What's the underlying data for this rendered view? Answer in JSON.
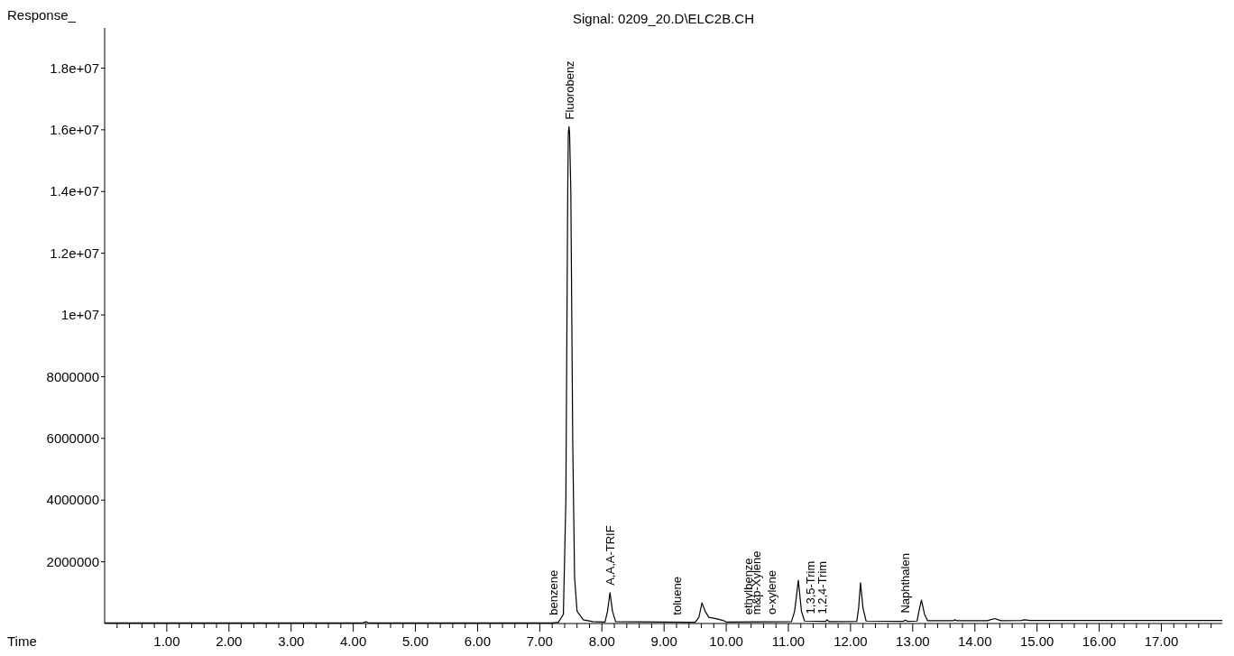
{
  "chart_data": {
    "type": "line",
    "title": "Signal: 0209_20.D\\ELC2B.CH",
    "xlabel": "Time",
    "ylabel": "Response_",
    "grid": false,
    "xlim": [
      0,
      17.98
    ],
    "ylim": [
      0,
      19300000
    ],
    "xticks": [
      {
        "value": 0.2,
        "label": null
      },
      {
        "value": 0.4,
        "label": null
      },
      {
        "value": 0.6,
        "label": null
      },
      {
        "value": 0.8,
        "label": null
      },
      {
        "value": 1,
        "label": "1.00"
      },
      {
        "value": 1.2,
        "label": null
      },
      {
        "value": 1.4,
        "label": null
      },
      {
        "value": 1.6,
        "label": null
      },
      {
        "value": 1.8,
        "label": null
      },
      {
        "value": 2,
        "label": "2.00"
      },
      {
        "value": 2.2,
        "label": null
      },
      {
        "value": 2.4,
        "label": null
      },
      {
        "value": 2.6,
        "label": null
      },
      {
        "value": 2.8,
        "label": null
      },
      {
        "value": 3,
        "label": "3.00"
      },
      {
        "value": 3.2,
        "label": null
      },
      {
        "value": 3.4,
        "label": null
      },
      {
        "value": 3.6,
        "label": null
      },
      {
        "value": 3.8,
        "label": null
      },
      {
        "value": 4,
        "label": "4.00"
      },
      {
        "value": 4.2,
        "label": null
      },
      {
        "value": 4.4,
        "label": null
      },
      {
        "value": 4.6,
        "label": null
      },
      {
        "value": 4.8,
        "label": null
      },
      {
        "value": 5,
        "label": "5.00"
      },
      {
        "value": 5.2,
        "label": null
      },
      {
        "value": 5.4,
        "label": null
      },
      {
        "value": 5.6,
        "label": null
      },
      {
        "value": 5.8,
        "label": null
      },
      {
        "value": 6,
        "label": "6.00"
      },
      {
        "value": 6.2,
        "label": null
      },
      {
        "value": 6.4,
        "label": null
      },
      {
        "value": 6.6,
        "label": null
      },
      {
        "value": 6.8,
        "label": null
      },
      {
        "value": 7,
        "label": "7.00"
      },
      {
        "value": 7.2,
        "label": null
      },
      {
        "value": 7.4,
        "label": null
      },
      {
        "value": 7.6,
        "label": null
      },
      {
        "value": 7.8,
        "label": null
      },
      {
        "value": 8,
        "label": "8.00"
      },
      {
        "value": 8.2,
        "label": null
      },
      {
        "value": 8.4,
        "label": null
      },
      {
        "value": 8.6,
        "label": null
      },
      {
        "value": 8.8,
        "label": null
      },
      {
        "value": 9,
        "label": "9.00"
      },
      {
        "value": 9.2,
        "label": null
      },
      {
        "value": 9.4,
        "label": null
      },
      {
        "value": 9.6,
        "label": null
      },
      {
        "value": 9.8,
        "label": null
      },
      {
        "value": 10,
        "label": "10.00"
      },
      {
        "value": 10.2,
        "label": null
      },
      {
        "value": 10.4,
        "label": null
      },
      {
        "value": 10.6,
        "label": null
      },
      {
        "value": 10.8,
        "label": null
      },
      {
        "value": 11,
        "label": "11.00"
      },
      {
        "value": 11.2,
        "label": null
      },
      {
        "value": 11.4,
        "label": null
      },
      {
        "value": 11.6,
        "label": null
      },
      {
        "value": 11.8,
        "label": null
      },
      {
        "value": 12,
        "label": "12.00"
      },
      {
        "value": 12.2,
        "label": null
      },
      {
        "value": 12.4,
        "label": null
      },
      {
        "value": 12.6,
        "label": null
      },
      {
        "value": 12.8,
        "label": null
      },
      {
        "value": 13,
        "label": "13.00"
      },
      {
        "value": 13.2,
        "label": null
      },
      {
        "value": 13.4,
        "label": null
      },
      {
        "value": 13.6,
        "label": null
      },
      {
        "value": 13.8,
        "label": null
      },
      {
        "value": 14,
        "label": "14.00"
      },
      {
        "value": 14.2,
        "label": null
      },
      {
        "value": 14.4,
        "label": null
      },
      {
        "value": 14.6,
        "label": null
      },
      {
        "value": 14.8,
        "label": null
      },
      {
        "value": 15,
        "label": "15.00"
      },
      {
        "value": 15.2,
        "label": null
      },
      {
        "value": 15.4,
        "label": null
      },
      {
        "value": 15.6,
        "label": null
      },
      {
        "value": 15.8,
        "label": null
      },
      {
        "value": 16,
        "label": "16.00"
      },
      {
        "value": 16.2,
        "label": null
      },
      {
        "value": 16.4,
        "label": null
      },
      {
        "value": 16.6,
        "label": null
      },
      {
        "value": 16.8,
        "label": null
      },
      {
        "value": 17,
        "label": "17.00"
      },
      {
        "value": 17.2,
        "label": null
      },
      {
        "value": 17.4,
        "label": null
      },
      {
        "value": 17.6,
        "label": null
      },
      {
        "value": 17.8,
        "label": null
      }
    ],
    "yticks": [
      2000000,
      4000000,
      6000000,
      8000000,
      {
        "value": 10000000,
        "label": "1e+07"
      },
      {
        "value": 12000000,
        "label": "1.2e+07"
      },
      {
        "value": 14000000,
        "label": "1.4e+07"
      },
      {
        "value": 16000000,
        "label": "1.6e+07"
      },
      {
        "value": 18000000,
        "label": "1.8e+07"
      }
    ],
    "series": [
      {
        "color": "#000000",
        "x": [
          0,
          4.15,
          4.2,
          4.25,
          7.2,
          7.3,
          7.38,
          7.42,
          7.45,
          7.46,
          7.47,
          7.48,
          7.5,
          7.53,
          7.56,
          7.6,
          7.7,
          7.85,
          8.05,
          8.09,
          8.13,
          8.17,
          8.22,
          9.5,
          9.56,
          9.61,
          9.66,
          9.72,
          9.85,
          9.95,
          10.0,
          11.05,
          11.1,
          11.16,
          11.21,
          11.26,
          11.6,
          11.62,
          11.66,
          12.1,
          12.13,
          12.16,
          12.2,
          12.25,
          12.85,
          12.88,
          12.92,
          13.07,
          13.1,
          13.14,
          13.19,
          13.24,
          13.65,
          13.68,
          13.71,
          14.2,
          14.32,
          14.42,
          14.75,
          14.8,
          14.88,
          17.98
        ],
        "values": [
          20000,
          20000,
          60000,
          20000,
          20000,
          40000,
          300000,
          4000000,
          14000000,
          15900000,
          16100000,
          15900000,
          14000000,
          6000000,
          1500000,
          400000,
          120000,
          60000,
          50000,
          400000,
          1000000,
          400000,
          60000,
          40000,
          200000,
          670000,
          400000,
          200000,
          150000,
          100000,
          50000,
          60000,
          400000,
          1400000,
          400000,
          80000,
          70000,
          120000,
          60000,
          70000,
          500000,
          1320000,
          500000,
          80000,
          70000,
          110000,
          70000,
          80000,
          400000,
          760000,
          300000,
          90000,
          90000,
          120000,
          90000,
          90000,
          160000,
          90000,
          100000,
          120000,
          100000,
          100000
        ]
      }
    ],
    "annotations": [
      {
        "text": "benzene",
        "x": 7.21,
        "y": 40000
      },
      {
        "text": "Fluorobenz",
        "x": 7.47,
        "y": 16100000
      },
      {
        "text": "A,A,A-TRIF",
        "x": 8.13,
        "y": 1000000
      },
      {
        "text": "toluene",
        "x": 9.2,
        "y": 40000
      },
      {
        "text": "ethylbenze",
        "x": 10.35,
        "y": 50000
      },
      {
        "text": "m&p-Xylene",
        "x": 10.48,
        "y": 50000
      },
      {
        "text": "o-xylene",
        "x": 10.73,
        "y": 55000
      },
      {
        "text": "1,3,5-Trim",
        "x": 11.35,
        "y": 75000
      },
      {
        "text": "1,2,4-Trim",
        "x": 11.54,
        "y": 70000
      },
      {
        "text": "Naphthalen",
        "x": 12.87,
        "y": 100000
      }
    ]
  }
}
